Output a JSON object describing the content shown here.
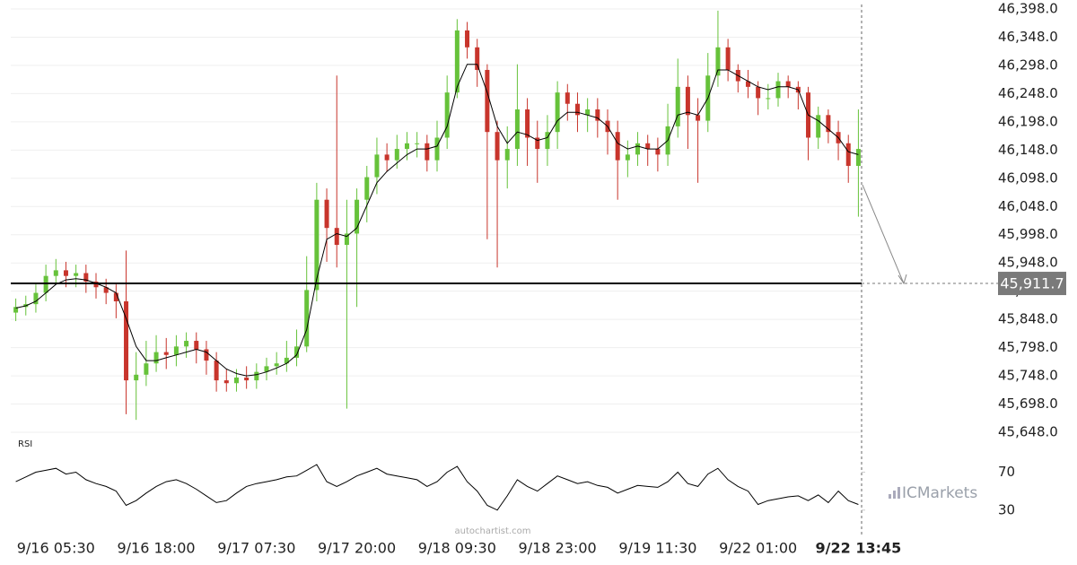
{
  "chart_data": {
    "type": "candlestick",
    "categories": [
      null,
      null,
      null,
      null,
      "9/16 05:30",
      null,
      null,
      null,
      null,
      null,
      null,
      null,
      null,
      null,
      "9/16 18:00",
      null,
      null,
      null,
      null,
      null,
      null,
      null,
      null,
      null,
      "9/17 07:30",
      null,
      null,
      null,
      null,
      null,
      null,
      null,
      null,
      null,
      "9/17 20:00",
      null,
      null,
      null,
      null,
      null,
      null,
      null,
      null,
      null,
      "9/18 09:30",
      null,
      null,
      null,
      null,
      null,
      null,
      null,
      null,
      null,
      "9/18 23:00",
      null,
      null,
      null,
      null,
      null,
      null,
      null,
      null,
      null,
      "9/19 11:30",
      null,
      null,
      null,
      null,
      null,
      null,
      null,
      null,
      null,
      "9/22 01:00",
      null,
      null,
      null,
      null,
      null,
      null,
      null,
      null,
      null,
      "9/22 13:45"
    ],
    "open": [
      45860,
      45870,
      45875,
      45895,
      45925,
      45935,
      45925,
      45930,
      45915,
      45905,
      45895,
      45880,
      45740,
      45750,
      45770,
      45790,
      45785,
      45800,
      45810,
      45795,
      45775,
      45740,
      45735,
      45745,
      45740,
      45755,
      45765,
      45770,
      45780,
      45800,
      45900,
      46060,
      46010,
      45980,
      46000,
      46060,
      46100,
      46140,
      46130,
      46150,
      46160,
      46160,
      46130,
      46170,
      46250,
      46360,
      46330,
      46290,
      46180,
      46130,
      46150,
      46220,
      46170,
      46150,
      46180,
      46250,
      46230,
      46210,
      46220,
      46200,
      46180,
      46130,
      46140,
      46160,
      46150,
      46140,
      46190,
      46260,
      46210,
      46200,
      46280,
      46330,
      46290,
      46270,
      46260,
      46240,
      46240,
      46270,
      46260,
      46250,
      46170,
      46210,
      46180,
      46160,
      46120
    ],
    "high": [
      45885,
      45890,
      45910,
      45945,
      45955,
      45950,
      45945,
      45945,
      45930,
      45920,
      45910,
      45970,
      45790,
      45810,
      45820,
      45815,
      45820,
      45825,
      45825,
      45810,
      45790,
      45760,
      45760,
      45765,
      45770,
      45780,
      45790,
      45810,
      45830,
      45960,
      46090,
      46080,
      46280,
      46060,
      46080,
      46120,
      46170,
      46160,
      46175,
      46180,
      46180,
      46175,
      46200,
      46280,
      46380,
      46375,
      46345,
      46300,
      46200,
      46190,
      46300,
      46240,
      46200,
      46210,
      46270,
      46265,
      46250,
      46240,
      46240,
      46220,
      46200,
      46165,
      46180,
      46175,
      46170,
      46230,
      46310,
      46280,
      46240,
      46320,
      46395,
      46345,
      46300,
      46290,
      46270,
      46265,
      46285,
      46280,
      46270,
      46260,
      46225,
      46220,
      46200,
      46175,
      46220
    ],
    "low": [
      45845,
      45855,
      45860,
      45880,
      45910,
      45905,
      45905,
      45895,
      45885,
      45875,
      45850,
      45680,
      45670,
      45730,
      45755,
      45760,
      45765,
      45780,
      45770,
      45750,
      45720,
      45720,
      45720,
      45725,
      45725,
      45740,
      45750,
      45755,
      45765,
      45790,
      45880,
      45950,
      45940,
      45690,
      45870,
      46020,
      46070,
      46110,
      46115,
      46130,
      46135,
      46110,
      46110,
      46150,
      46240,
      46310,
      46260,
      45990,
      45940,
      46080,
      46120,
      46120,
      46090,
      46120,
      46150,
      46200,
      46180,
      46180,
      46170,
      46140,
      46060,
      46100,
      46120,
      46120,
      46110,
      46120,
      46170,
      46150,
      46090,
      46180,
      46260,
      46270,
      46250,
      46240,
      46210,
      46220,
      46225,
      46240,
      46220,
      46130,
      46150,
      46160,
      46130,
      46090,
      46030
    ],
    "close": [
      45870,
      45875,
      45895,
      45925,
      45935,
      45925,
      45930,
      45915,
      45905,
      45895,
      45880,
      45740,
      45750,
      45770,
      45790,
      45785,
      45800,
      45810,
      45795,
      45775,
      45740,
      45735,
      45745,
      45740,
      45755,
      45765,
      45770,
      45780,
      45800,
      45900,
      46060,
      46010,
      45980,
      46000,
      46060,
      46100,
      46140,
      46130,
      46150,
      46160,
      46160,
      46130,
      46170,
      46250,
      46360,
      46330,
      46290,
      46180,
      46130,
      46150,
      46220,
      46170,
      46150,
      46180,
      46250,
      46230,
      46210,
      46220,
      46200,
      46180,
      46130,
      46140,
      46160,
      46150,
      46140,
      46190,
      46260,
      46210,
      46200,
      46280,
      46330,
      46290,
      46270,
      46260,
      46240,
      46240,
      46270,
      46260,
      46250,
      46170,
      46210,
      46180,
      46160,
      46120,
      46150
    ],
    "up_color": "#66c23a",
    "down_color": "#c8352c",
    "ma": {
      "color": "#000000",
      "values": [
        45868,
        45872,
        45880,
        45895,
        45910,
        45918,
        45920,
        45918,
        45912,
        45905,
        45895,
        45850,
        45800,
        45775,
        45775,
        45780,
        45785,
        45790,
        45795,
        45790,
        45775,
        45760,
        45752,
        45748,
        45750,
        45755,
        45762,
        45770,
        45785,
        45830,
        45920,
        45990,
        46000,
        45995,
        46010,
        46050,
        46090,
        46110,
        46125,
        46140,
        46150,
        46150,
        46155,
        46190,
        46260,
        46300,
        46300,
        46250,
        46190,
        46160,
        46180,
        46175,
        46165,
        46170,
        46200,
        46215,
        46215,
        46210,
        46205,
        46190,
        46160,
        46150,
        46155,
        46150,
        46150,
        46165,
        46210,
        46215,
        46210,
        46240,
        46290,
        46290,
        46280,
        46270,
        46260,
        46255,
        46260,
        46260,
        46255,
        46210,
        46200,
        46185,
        46170,
        46145,
        46140
      ]
    },
    "ylim": [
      45648,
      46398
    ],
    "yticks": [
      {
        "value": 45648,
        "label": "45,648.0"
      },
      {
        "value": 45698,
        "label": "45,698.0"
      },
      {
        "value": 45748,
        "label": "45,748.0"
      },
      {
        "value": 45798,
        "label": "45,798.0"
      },
      {
        "value": 45848,
        "label": "45,848.0"
      },
      {
        "value": 45898,
        "label": "45,898.0"
      },
      {
        "value": 45948,
        "label": "45,948.0"
      },
      {
        "value": 45998,
        "label": "45,998.0"
      },
      {
        "value": 46048,
        "label": "46,048.0"
      },
      {
        "value": 46098,
        "label": "46,098.0"
      },
      {
        "value": 46148,
        "label": "46,148.0"
      },
      {
        "value": 46198,
        "label": "46,198.0"
      },
      {
        "value": 46248,
        "label": "46,248.0"
      },
      {
        "value": 46298,
        "label": "46,298.0"
      },
      {
        "value": 46348,
        "label": "46,348.0"
      },
      {
        "value": 46398,
        "label": "46,398.0"
      }
    ],
    "grid": true,
    "level": {
      "value": 45911.7,
      "label": "45,911.7"
    },
    "rsi": {
      "title": "RSI",
      "color": "#000000",
      "ylim": [
        10,
        95
      ],
      "yticks": [
        30,
        70
      ],
      "values": [
        60,
        65,
        70,
        72,
        74,
        68,
        70,
        62,
        58,
        55,
        50,
        35,
        40,
        48,
        55,
        60,
        62,
        58,
        52,
        45,
        38,
        40,
        48,
        55,
        58,
        60,
        62,
        65,
        66,
        72,
        78,
        60,
        55,
        60,
        66,
        70,
        74,
        68,
        66,
        64,
        62,
        55,
        60,
        70,
        76,
        60,
        50,
        35,
        30,
        45,
        62,
        55,
        50,
        58,
        66,
        62,
        58,
        60,
        56,
        54,
        48,
        52,
        56,
        55,
        54,
        60,
        70,
        58,
        55,
        68,
        74,
        62,
        55,
        50,
        36,
        40,
        42,
        44,
        45,
        40,
        46,
        38,
        50,
        40,
        36
      ]
    },
    "watermark": "autochartist.com",
    "brand": "ICMarkets"
  }
}
